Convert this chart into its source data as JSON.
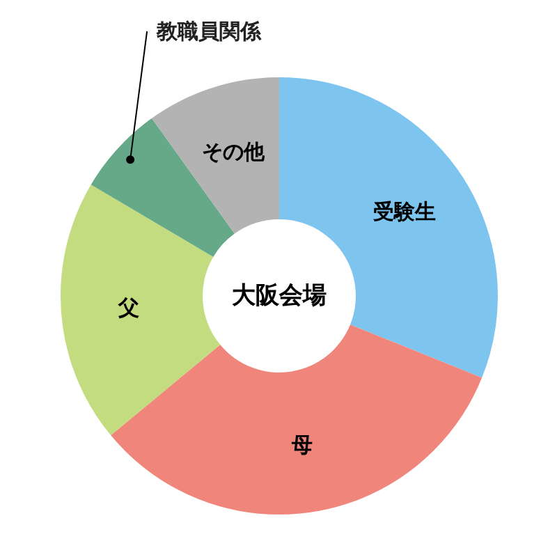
{
  "chart_data": {
    "type": "donut",
    "title": "大阪会場",
    "categories": [
      "受験生",
      "母",
      "父",
      "教職員関係",
      "その他"
    ],
    "values": [
      31.1,
      32.9,
      19.5,
      6.6,
      9.9
    ],
    "colors": [
      "#7dc5ee",
      "#f0857c",
      "#c3dc80",
      "#65a988",
      "#b3b3b3"
    ]
  }
}
